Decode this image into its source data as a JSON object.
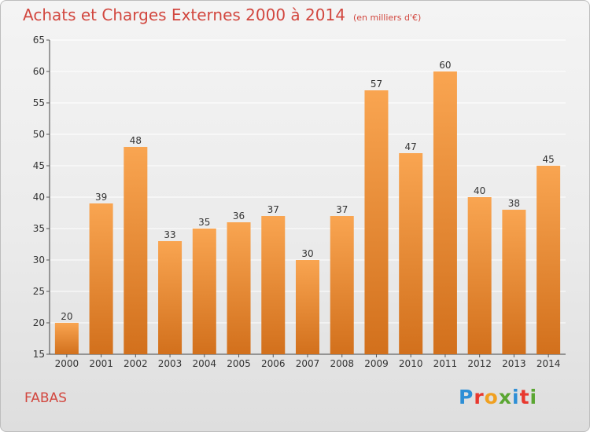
{
  "header": {
    "title": "Achats et Charges Externes 2000 à 2014",
    "unit": "(en milliers d'€)"
  },
  "commune": "FABAS",
  "logo": {
    "text": "Proxiti",
    "letter_colors": [
      "#2e8fd6",
      "#e8382e",
      "#f0a020",
      "#5aa632",
      "#2e8fd6",
      "#e8382e",
      "#5aa632"
    ]
  },
  "colors": {
    "bar_top": "#f9a551",
    "bar_bottom": "#d2701c",
    "title": "#d2473f",
    "grid": "#ffffff",
    "axis_text": "#333333"
  },
  "chart_data": {
    "type": "bar",
    "categories": [
      "2000",
      "2001",
      "2002",
      "2003",
      "2004",
      "2005",
      "2006",
      "2007",
      "2008",
      "2009",
      "2010",
      "2011",
      "2012",
      "2013",
      "2014"
    ],
    "values": [
      20,
      39,
      48,
      33,
      35,
      36,
      37,
      30,
      37,
      57,
      47,
      60,
      40,
      38,
      45
    ],
    "ylim": [
      15,
      65
    ],
    "yticks": [
      15,
      20,
      25,
      30,
      35,
      40,
      45,
      50,
      55,
      60,
      65
    ],
    "grid": true,
    "xlabel": "",
    "ylabel": ""
  }
}
